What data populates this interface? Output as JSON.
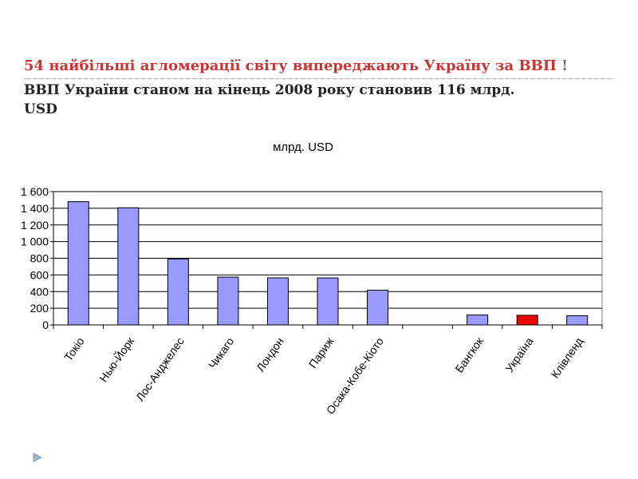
{
  "slide": {
    "title_main": "54 найбільші агломерації світу випереджають Україну за ВВП",
    "title_excl": "!",
    "subtitle_line1": " ВВП України станом на кінець 2008 року становив 116 млрд.",
    "subtitle_line2": "USD"
  },
  "colors": {
    "bar_fill": "#9999ff",
    "bar_highlight": "#ee0000",
    "bar_stroke": "#000000",
    "grid": "#000000",
    "title_red": "#cc3333"
  },
  "icons": [
    "triangle-bullet-icon"
  ],
  "chart_data": {
    "type": "bar",
    "title": "млрд. USD",
    "categories": [
      "Токіо",
      "Нью-Йорк",
      "Лос-Анджелес",
      "Чикаго",
      "Лондон",
      "Париж",
      "Осака-Кобе-Кіото",
      "",
      "Бангкок",
      "Україна",
      "Клівленд"
    ],
    "values": [
      1479,
      1406,
      792,
      574,
      565,
      564,
      417,
      null,
      119,
      116,
      111
    ],
    "highlight_category": "Україна",
    "ylim": [
      0,
      1600
    ],
    "yticks": [
      0,
      200,
      400,
      600,
      800,
      1000,
      1200,
      1400,
      1600
    ],
    "ytick_labels": [
      "0",
      "200",
      "400",
      "600",
      "800",
      "1 000",
      "1 200",
      "1 400",
      "1 600"
    ],
    "grid": true,
    "legend": "none"
  }
}
